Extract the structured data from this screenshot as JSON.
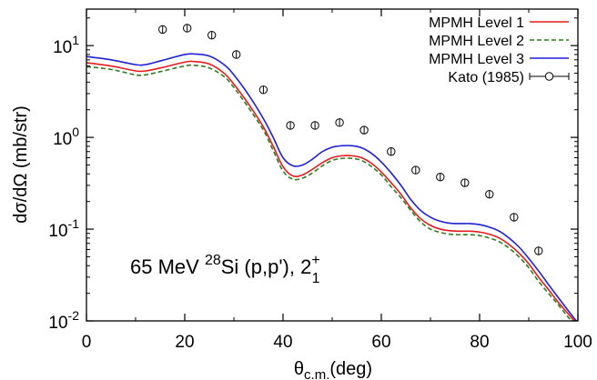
{
  "chart_data": {
    "type": "line",
    "xlabel": "θc.m.(deg)",
    "xlabel_parts": {
      "main": "θ",
      "sub": "c.m.",
      "tail": "(deg)"
    },
    "ylabel": "dσ/dΩ (mb/str)",
    "xlim": [
      0,
      100
    ],
    "ylim": [
      0.01,
      25
    ],
    "y_scale": "log",
    "grid": false,
    "legend_position": "top-right",
    "x_ticks": [
      {
        "value": 0,
        "label": "0"
      },
      {
        "value": 20,
        "label": "20"
      },
      {
        "value": 40,
        "label": "40"
      },
      {
        "value": 60,
        "label": "60"
      },
      {
        "value": 80,
        "label": "80"
      },
      {
        "value": 100,
        "label": "100"
      }
    ],
    "y_ticks": [
      {
        "value": 0.01,
        "base": "10",
        "exp": "-2"
      },
      {
        "value": 0.1,
        "base": "10",
        "exp": "-1"
      },
      {
        "value": 1,
        "base": "10",
        "exp": "0"
      },
      {
        "value": 10,
        "base": "10",
        "exp": "1"
      }
    ],
    "annotation": {
      "prefix": "65 MeV ",
      "sup1": "28",
      "mid": "Si (p,p'), 2",
      "sup2": "+",
      "sub2": "1"
    },
    "series": [
      {
        "name": "MPMH Level 1",
        "color": "#e41a1c",
        "style": "solid",
        "x": [
          0,
          5,
          10,
          12,
          15,
          20,
          22,
          25,
          28,
          30,
          33,
          36,
          38,
          40,
          42,
          44,
          46,
          48,
          50,
          52,
          54,
          56,
          58,
          60,
          62,
          64,
          66,
          68,
          70,
          72,
          74,
          76,
          78,
          80,
          82,
          84,
          86,
          88,
          90,
          92,
          94,
          96,
          98,
          100
        ],
        "y": [
          6.5,
          6.0,
          5.3,
          5.3,
          5.7,
          6.6,
          6.7,
          6.3,
          5.0,
          3.8,
          2.3,
          1.3,
          0.8,
          0.48,
          0.38,
          0.39,
          0.45,
          0.53,
          0.6,
          0.63,
          0.63,
          0.6,
          0.52,
          0.42,
          0.32,
          0.24,
          0.17,
          0.13,
          0.11,
          0.1,
          0.096,
          0.095,
          0.095,
          0.093,
          0.088,
          0.08,
          0.068,
          0.055,
          0.042,
          0.03,
          0.022,
          0.016,
          0.012,
          0.009
        ]
      },
      {
        "name": "MPMH Level 2",
        "color": "#2e7d1e",
        "style": "dashed",
        "x": [
          0,
          5,
          10,
          12,
          15,
          20,
          22,
          25,
          28,
          30,
          33,
          36,
          38,
          40,
          42,
          44,
          46,
          48,
          50,
          52,
          54,
          56,
          58,
          60,
          62,
          64,
          66,
          68,
          70,
          72,
          74,
          76,
          78,
          80,
          82,
          84,
          86,
          88,
          90,
          92,
          94,
          96,
          98,
          100
        ],
        "y": [
          5.9,
          5.5,
          4.8,
          4.8,
          5.2,
          6.0,
          6.1,
          5.7,
          4.6,
          3.5,
          2.1,
          1.2,
          0.72,
          0.43,
          0.35,
          0.36,
          0.41,
          0.49,
          0.56,
          0.59,
          0.59,
          0.56,
          0.48,
          0.39,
          0.29,
          0.22,
          0.16,
          0.12,
          0.1,
          0.092,
          0.088,
          0.087,
          0.087,
          0.085,
          0.08,
          0.073,
          0.062,
          0.05,
          0.038,
          0.027,
          0.02,
          0.015,
          0.011,
          0.0085
        ]
      },
      {
        "name": "MPMH Level 3",
        "color": "#1f1fd6",
        "style": "solid",
        "x": [
          0,
          5,
          10,
          12,
          15,
          20,
          22,
          25,
          28,
          30,
          33,
          36,
          38,
          40,
          42,
          44,
          46,
          48,
          50,
          52,
          54,
          56,
          58,
          60,
          62,
          64,
          66,
          68,
          70,
          72,
          74,
          76,
          78,
          80,
          82,
          84,
          86,
          88,
          90,
          92,
          94,
          96,
          98,
          100
        ],
        "y": [
          7.6,
          7.0,
          6.2,
          6.2,
          6.8,
          8.0,
          8.1,
          7.7,
          6.2,
          4.8,
          2.9,
          1.6,
          1.0,
          0.6,
          0.49,
          0.5,
          0.58,
          0.7,
          0.78,
          0.81,
          0.81,
          0.77,
          0.67,
          0.54,
          0.41,
          0.3,
          0.21,
          0.16,
          0.135,
          0.122,
          0.116,
          0.115,
          0.115,
          0.112,
          0.105,
          0.095,
          0.08,
          0.064,
          0.048,
          0.035,
          0.025,
          0.018,
          0.013,
          0.0095
        ]
      }
    ],
    "data_points": {
      "name": "Kato (1985)",
      "x": [
        15.5,
        20.5,
        25.5,
        30.5,
        36,
        41.5,
        46.5,
        51.5,
        56.5,
        62,
        67,
        72,
        77,
        82,
        87,
        92
      ],
      "y": [
        15.0,
        15.5,
        13.0,
        8.0,
        3.3,
        1.35,
        1.35,
        1.45,
        1.2,
        0.7,
        0.44,
        0.37,
        0.32,
        0.24,
        0.135,
        0.058
      ]
    }
  }
}
